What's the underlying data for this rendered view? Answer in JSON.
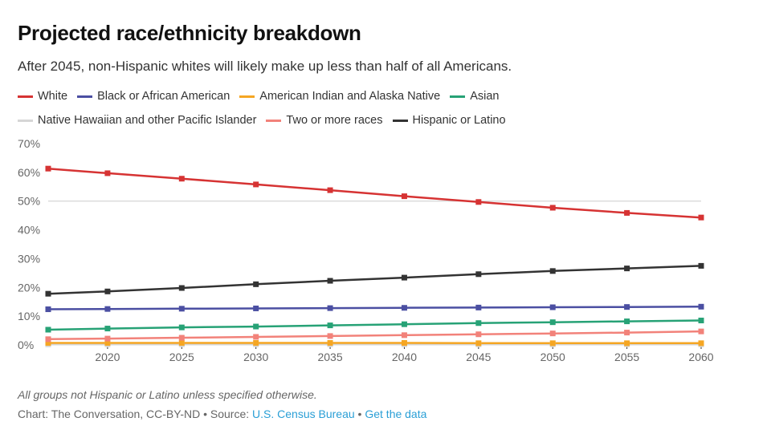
{
  "header": {
    "title": "Projected race/ethnicity breakdown",
    "subtitle": "After 2045, non-Hispanic whites will likely make up less than half of all Americans."
  },
  "footer": {
    "footnote": "All groups not Hispanic or Latino unless specified otherwise.",
    "credit_prefix": "Chart: The Conversation, CC-BY-ND • Source: ",
    "source_link": "U.S. Census Bureau",
    "separator": " • ",
    "data_link": "Get the data"
  },
  "chart_data": {
    "type": "line",
    "x": [
      2016,
      2020,
      2025,
      2030,
      2035,
      2040,
      2045,
      2050,
      2055,
      2060
    ],
    "x_ticks": [
      "2020",
      "2025",
      "2030",
      "2035",
      "2040",
      "2045",
      "2050",
      "2055",
      "2060"
    ],
    "y_ticks": [
      "70%",
      "60%",
      "50%",
      "40%",
      "30%",
      "20%",
      "10%",
      "0%"
    ],
    "ylim": [
      0,
      70
    ],
    "reference_line": 50,
    "legend_placement": "top",
    "series": [
      {
        "name": "White",
        "color": "#d63333",
        "values": [
          61.3,
          59.7,
          57.8,
          55.8,
          53.8,
          51.7,
          49.7,
          47.7,
          45.9,
          44.3
        ]
      },
      {
        "name": "Black or African American",
        "color": "#4b4fa2",
        "values": [
          12.4,
          12.5,
          12.6,
          12.7,
          12.8,
          12.9,
          13.0,
          13.1,
          13.2,
          13.3
        ]
      },
      {
        "name": "American Indian and Alaska Native",
        "color": "#f5a623",
        "values": [
          0.7,
          0.7,
          0.7,
          0.7,
          0.7,
          0.7,
          0.6,
          0.6,
          0.6,
          0.6
        ]
      },
      {
        "name": "Asian",
        "color": "#27a276",
        "values": [
          5.3,
          5.7,
          6.1,
          6.4,
          6.8,
          7.2,
          7.6,
          7.9,
          8.2,
          8.5
        ]
      },
      {
        "name": "Native Hawaiian and other Pacific Islander",
        "color": "#d6d6d6",
        "values": [
          0.2,
          0.2,
          0.2,
          0.2,
          0.2,
          0.2,
          0.2,
          0.2,
          0.2,
          0.2
        ]
      },
      {
        "name": "Two or more races",
        "color": "#f2827a",
        "values": [
          2.0,
          2.2,
          2.5,
          2.8,
          3.1,
          3.4,
          3.7,
          4.0,
          4.3,
          4.7
        ]
      },
      {
        "name": "Hispanic or Latino",
        "color": "#333333",
        "values": [
          17.8,
          18.6,
          19.8,
          21.1,
          22.3,
          23.4,
          24.6,
          25.7,
          26.6,
          27.5
        ]
      }
    ]
  }
}
